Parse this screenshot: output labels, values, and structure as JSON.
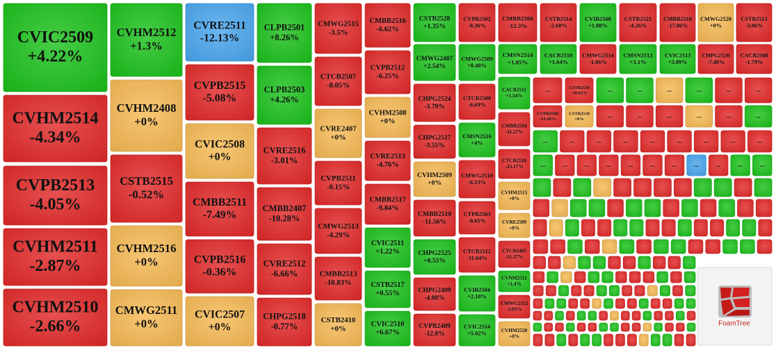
{
  "tiles": [
    {
      "label": "CVIC2509",
      "change": "+4.22%"
    },
    {
      "label": "CVHM2514",
      "change": "-4.34%"
    },
    {
      "label": "CVPB2513",
      "change": "-4.05%"
    },
    {
      "label": "CVHM2511",
      "change": "-2.87%"
    },
    {
      "label": "CVHM2510",
      "change": "-2.66%"
    },
    {
      "label": "CVHM2512",
      "change": "+1.3%"
    },
    {
      "label": "CVHM2408",
      "change": "+0%"
    },
    {
      "label": "CSTB2515",
      "change": "-0.52%"
    },
    {
      "label": "CVHM2516",
      "change": "+0%"
    },
    {
      "label": "CMWG2511",
      "change": "+0%"
    },
    {
      "label": "CVRE2511",
      "change": "-12.13%",
      "selected": true
    },
    {
      "label": "CVPB2515",
      "change": "-5.08%"
    },
    {
      "label": "CVIC2508",
      "change": "+0%"
    },
    {
      "label": "CMBB2511",
      "change": "-7.49%"
    },
    {
      "label": "CVPB2516",
      "change": "-0.36%"
    },
    {
      "label": "CVIC2507",
      "change": "+0%"
    },
    {
      "label": "CLPB2501",
      "change": "+8.26%"
    },
    {
      "label": "CLPB2503",
      "change": "+4.26%"
    },
    {
      "label": "CVRE2516",
      "change": "-3.01%"
    },
    {
      "label": "CMBB2407",
      "change": "-10.28%"
    },
    {
      "label": "CVRE2512",
      "change": "-6.66%"
    },
    {
      "label": "CHPG2518",
      "change": "-0.77%"
    },
    {
      "label": "CMWG2515",
      "change": "-3.5%"
    },
    {
      "label": "CTCB2507",
      "change": "-8.05%"
    },
    {
      "label": "CVRE2407",
      "change": "+0%"
    },
    {
      "label": "CVPB2511",
      "change": "-0.15%"
    },
    {
      "label": "CMWG2513",
      "change": "-4.29%"
    },
    {
      "label": "CMBB2513",
      "change": "-10.83%"
    },
    {
      "label": "CSTB2410",
      "change": "+0%"
    },
    {
      "label": "CMBB2516",
      "change": "-6.62%"
    },
    {
      "label": "CVPB2512",
      "change": "-6.25%"
    },
    {
      "label": "CVHM2508",
      "change": "+0%"
    },
    {
      "label": "CVRE2513",
      "change": "-4.76%"
    },
    {
      "label": "CMBB2517",
      "change": "-9.84%"
    },
    {
      "label": "CVIC2511",
      "change": "+1.22%"
    },
    {
      "label": "CSTB2517",
      "change": "+0.55%"
    },
    {
      "label": "CVIC2510",
      "change": "+6.67%"
    },
    {
      "label": "CSTB2528",
      "change": "+1.35%"
    },
    {
      "label": "CVPB2502",
      "change": "-0.36%"
    },
    {
      "label": "CMBB2500",
      "change": "-12.3%"
    },
    {
      "label": "CSTB2514",
      "change": "-2.68%"
    },
    {
      "label": "CVIB2508",
      "change": "+1.88%"
    },
    {
      "label": "CSTB2521",
      "change": "-4.26%"
    },
    {
      "label": "CMBB2518",
      "change": "-17.86%"
    },
    {
      "label": "CMWG2520",
      "change": "+0%"
    },
    {
      "label": "CSTB2513",
      "change": "-3.86%"
    },
    {
      "label": "CMWG2407",
      "change": "+2.54%"
    },
    {
      "label": "CMWG2509",
      "change": "+0.48%"
    },
    {
      "label": "CMSN2514",
      "change": "+1.85%"
    },
    {
      "label": "CACB2510",
      "change": "+1.64%"
    },
    {
      "label": "CMWG2514",
      "change": "-1.06%"
    },
    {
      "label": "CMSN2512",
      "change": "+3.1%"
    },
    {
      "label": "CVIC2513",
      "change": "+3.09%"
    },
    {
      "label": "CHPG2520",
      "change": "-7.48%"
    },
    {
      "label": "CACB2508",
      "change": "-1.79%"
    },
    {
      "label": "CHPG2524",
      "change": "-3.79%"
    },
    {
      "label": "CHPG2517",
      "change": "-3.55%"
    },
    {
      "label": "CVHM2509",
      "change": "+0%"
    },
    {
      "label": "CMBB2510",
      "change": "-11.56%"
    },
    {
      "label": "CHPG2525",
      "change": "+0.55%"
    },
    {
      "label": "CHPG2409",
      "change": "-4.08%"
    },
    {
      "label": "CVPB2409",
      "change": "-12.8%"
    },
    {
      "label": "CTCB2500",
      "change": "-6.69%"
    },
    {
      "label": "CMSN2516",
      "change": "+4%"
    },
    {
      "label": "CMWG2510",
      "change": "-6.53%"
    },
    {
      "label": "CTPB2503",
      "change": "-0.65%"
    },
    {
      "label": "CTCB2512",
      "change": "-11.64%"
    },
    {
      "label": "CVIB2504",
      "change": "+2.18%"
    },
    {
      "label": "CVIC2514",
      "change": "+5.02%"
    },
    {
      "label": "CACB2511",
      "change": "+1.54%"
    },
    {
      "label": "CMBB2504",
      "change": "-11.27%"
    },
    {
      "label": "CTCB2518",
      "change": "-23.17%"
    },
    {
      "label": "CVHM2515",
      "change": "+0%"
    },
    {
      "label": "CVRE2509",
      "change": "+0%"
    },
    {
      "label": "CTCB2403",
      "change": "-11.37%"
    },
    {
      "label": "CVNM2511",
      "change": "+1.4%"
    },
    {
      "label": "CMWG2512",
      "change": "-3.93%"
    },
    {
      "label": "CVHM2520",
      "change": "+0%"
    },
    {
      "label": "CSTB2530",
      "change": "-10.62%"
    },
    {
      "label": "CVPB2500",
      "change": "-13.18%"
    },
    {
      "label": "CSTB2510",
      "change": "+0%"
    }
  ],
  "overflow_label": "...",
  "tile_rows": [
    "d",
    "uufudd",
    "dddfdu",
    "udddddddd",
    "uddddddsduu",
    "udufdddduudu",
    "dfuuduudududd",
    "dfudduuddudduud",
    "ddudfuduudduud",
    "ddfuudduddu",
    "dufduudddudu",
    "ddudduuddfudu",
    "duuddfuddudduu",
    "dduduudfdduddud",
    "uddudduuddfuddu",
    "dduduudddfuudd"
  ],
  "colors": {
    "up": "#1dc21d",
    "down": "#e22a2a",
    "flat": "#f6ba55",
    "selected": "#4aa6ee"
  },
  "logo": "FoamTree"
}
